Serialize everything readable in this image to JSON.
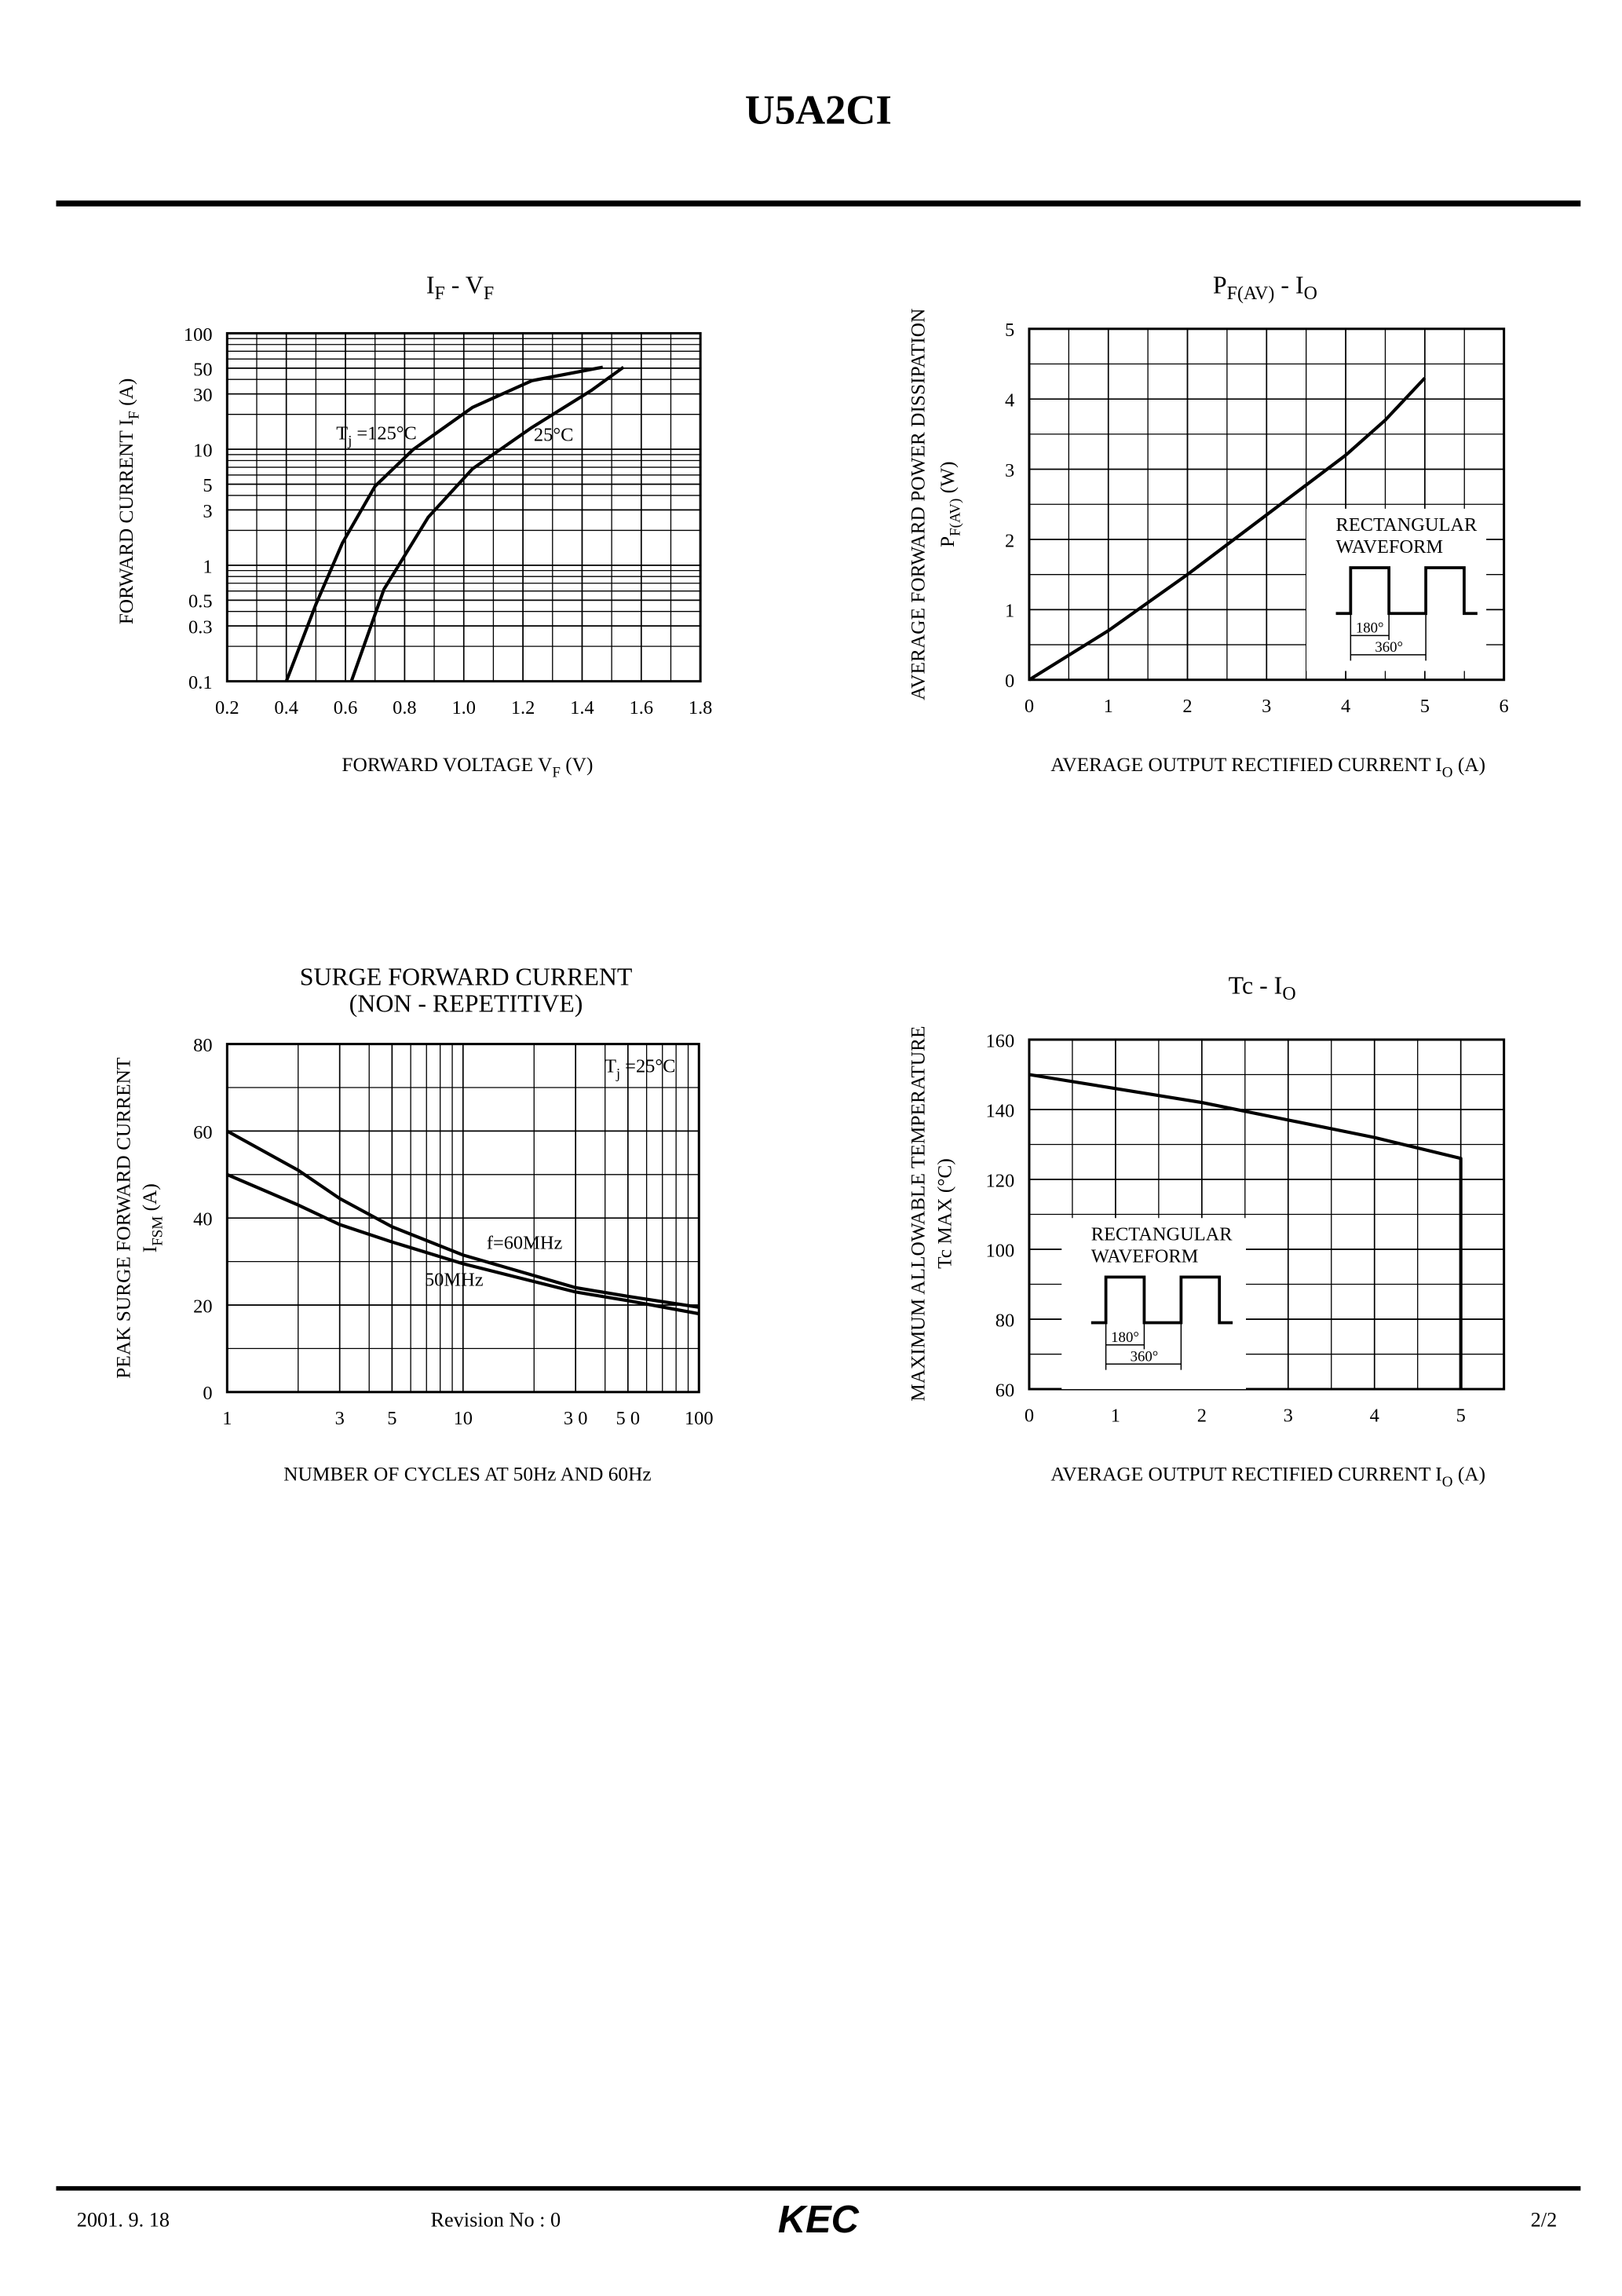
{
  "header": {
    "title": "U5A2CI"
  },
  "chart_data": [
    {
      "type": "line",
      "title": [
        [
          "I",
          "F",
          " - V",
          "F"
        ]
      ],
      "x_label": [
        [
          "FORWARD VOLTAGE V",
          "F",
          "  (V)"
        ]
      ],
      "y_label": [
        [
          "FORWARD CURRENT I",
          "F",
          "  (A)"
        ]
      ],
      "xlim": [
        0.2,
        1.8
      ],
      "xticks": [
        0.2,
        0.4,
        0.6,
        0.8,
        {
          "value": 1,
          "label": "1.0"
        },
        1.2,
        1.4,
        1.6,
        1.8
      ],
      "ylim": [
        0.1,
        100
      ],
      "yticks": [
        0.1,
        0.3,
        0.5,
        1,
        3,
        5,
        10,
        30,
        50,
        100
      ],
      "ylog": true,
      "grid": true,
      "series": [
        {
          "name": [
            "T",
            "j",
            " =125°C"
          ],
          "color": "#000000",
          "x": [
            0.4,
            0.5,
            0.59,
            0.7,
            0.83,
            1.03,
            1.23,
            1.47
          ],
          "values": [
            0.1,
            0.46,
            1.56,
            4.8,
            10,
            23,
            39,
            51
          ]
        },
        {
          "name": [
            "25°C"
          ],
          "color": "#000000",
          "x": [
            0.62,
            0.73,
            0.88,
            1.03,
            1.23,
            1.43,
            1.54
          ],
          "values": [
            0.1,
            0.62,
            2.6,
            6.8,
            15.4,
            32,
            51
          ]
        }
      ]
    },
    {
      "type": "line",
      "title": [
        [
          "P",
          "F(AV)",
          " - I",
          "O"
        ]
      ],
      "x_label": [
        [
          "AVERAGE OUTPUT RECTIFIED CURRENT I",
          "O",
          "  (A)"
        ]
      ],
      "y_label": [
        [
          "AVERAGE FORWARD POWER DISSIPATION"
        ],
        [
          "P",
          "F(AV)",
          "  (W)"
        ]
      ],
      "xlim": [
        0,
        6
      ],
      "xticks": [
        0,
        1,
        2,
        3,
        4,
        5,
        6
      ],
      "ylim": [
        0,
        5
      ],
      "yticks": [
        0,
        1,
        2,
        3,
        4,
        5
      ],
      "grid": true,
      "series": [
        {
          "color": "#000000",
          "x": [
            0,
            1,
            2,
            3,
            4,
            4.5,
            5
          ],
          "values": [
            0,
            0.7,
            1.5,
            2.35,
            3.2,
            3.7,
            4.3
          ]
        }
      ],
      "inset": {
        "lines": [
          "RECTANGULAR",
          "WAVEFORM"
        ],
        "labels": [
          "180°",
          "360°"
        ]
      }
    },
    {
      "type": "line",
      "title": [
        [
          "SURGE FORWARD CURRENT"
        ],
        [
          "(NON - REPETITIVE)"
        ]
      ],
      "x_label": [
        [
          "NUMBER OF CYCLES AT 50Hz AND 60Hz"
        ]
      ],
      "y_label": [
        [
          "PEAK SURGE FORWARD CURRENT"
        ],
        [
          "I",
          "FSM",
          "  (A)"
        ]
      ],
      "xlim": [
        1,
        100
      ],
      "xticks": [
        1,
        3,
        5,
        10,
        {
          "value": 30,
          "label": "3 0"
        },
        {
          "value": 50,
          "label": "5 0"
        },
        100
      ],
      "xlog": true,
      "ylim": [
        0,
        80
      ],
      "yticks": [
        0,
        20,
        40,
        60,
        80
      ],
      "grid": true,
      "annotations": [
        [
          "T",
          "j",
          " =25°C"
        ]
      ],
      "series": [
        {
          "name": [
            "f=60MHz"
          ],
          "color": "#000000",
          "x": [
            1,
            2,
            3,
            5,
            10,
            30,
            50,
            100
          ],
          "values": [
            60,
            51,
            44.5,
            38,
            31.5,
            24,
            22,
            19.5
          ]
        },
        {
          "name": [
            "50MHz"
          ],
          "color": "#000000",
          "x": [
            1,
            2,
            3,
            5,
            10,
            30,
            50,
            100
          ],
          "values": [
            50,
            43,
            38.5,
            34.5,
            29.5,
            23,
            21,
            18
          ]
        }
      ]
    },
    {
      "type": "line",
      "title": [
        [
          "Tc  -  I",
          "O"
        ]
      ],
      "x_label": [
        [
          "AVERAGE OUTPUT RECTIFIED  CURRENT I",
          "O",
          " (A)"
        ]
      ],
      "y_label": [
        [
          "MAXIMUM ALLOWABLE TEMPERATURE"
        ],
        [
          "Tc MAX (°C)"
        ]
      ],
      "xlim": [
        0,
        5.5
      ],
      "xticks": [
        0,
        1,
        2,
        3,
        4,
        5
      ],
      "ylim": [
        60,
        160
      ],
      "yticks": [
        60,
        80,
        100,
        120,
        140,
        160
      ],
      "grid": true,
      "series": [
        {
          "color": "#000000",
          "x": [
            0,
            1,
            2,
            3,
            4,
            5,
            5
          ],
          "values": [
            150,
            146,
            142,
            137,
            132,
            126,
            60
          ]
        }
      ],
      "inset": {
        "lines": [
          "RECTANGULAR",
          "WAVEFORM"
        ],
        "labels": [
          "180°",
          "360°"
        ]
      }
    }
  ],
  "footer": {
    "date": "2001. 9. 18",
    "revision": "Revision No : 0",
    "logo": "KEC",
    "page": "2/2"
  }
}
